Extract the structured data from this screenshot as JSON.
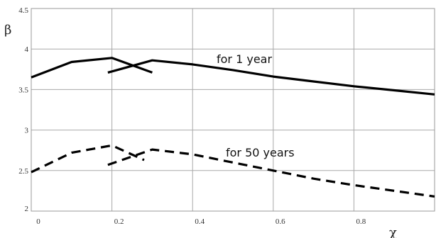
{
  "chart_data": {
    "type": "line",
    "xlabel": "χ",
    "ylabel": "β",
    "xlim": [
      0,
      1
    ],
    "ylim": [
      2,
      4.5
    ],
    "x_ticks": [
      "0",
      "0.2",
      "0.4",
      "0.6",
      "0.8"
    ],
    "y_ticks": [
      "2",
      "2.5",
      "3",
      "3.5",
      "4",
      "4.5"
    ],
    "grid": true,
    "annotations": [
      "for 1 year",
      "for 50 years"
    ],
    "series": [
      {
        "style": "solid",
        "x": [
          0,
          0.1,
          0.2,
          0.3
        ],
        "y": [
          3.65,
          3.84,
          3.89,
          3.71
        ]
      },
      {
        "style": "solid",
        "x": [
          0.19,
          0.3,
          0.4,
          0.5,
          0.6,
          0.7,
          0.8,
          0.9,
          1.0
        ],
        "y": [
          3.71,
          3.86,
          3.81,
          3.74,
          3.66,
          3.6,
          3.54,
          3.49,
          3.44
        ]
      },
      {
        "style": "dashed",
        "x": [
          0,
          0.1,
          0.2,
          0.28
        ],
        "y": [
          2.48,
          2.72,
          2.81,
          2.63
        ]
      },
      {
        "style": "dashed",
        "x": [
          0.19,
          0.3,
          0.4,
          0.5,
          0.6,
          0.7,
          0.8,
          0.9,
          1.0
        ],
        "y": [
          2.57,
          2.76,
          2.7,
          2.6,
          2.5,
          2.4,
          2.32,
          2.25,
          2.18
        ]
      }
    ]
  }
}
